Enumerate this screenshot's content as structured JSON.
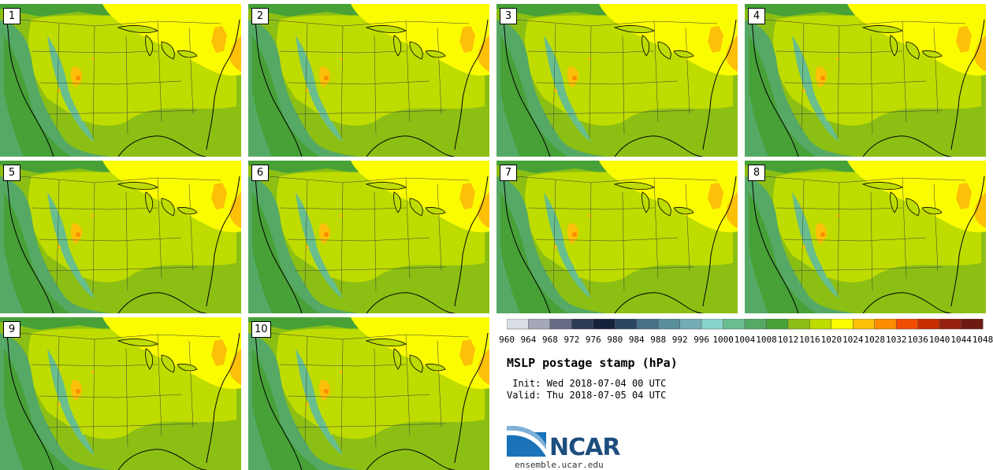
{
  "panels": [
    {
      "label": "1"
    },
    {
      "label": "2"
    },
    {
      "label": "3"
    },
    {
      "label": "4"
    },
    {
      "label": "5"
    },
    {
      "label": "6"
    },
    {
      "label": "7"
    },
    {
      "label": "8"
    },
    {
      "label": "9"
    },
    {
      "label": "10"
    }
  ],
  "colorbar": {
    "levels": [
      "960",
      "964",
      "968",
      "972",
      "976",
      "980",
      "984",
      "988",
      "992",
      "996",
      "1000",
      "1004",
      "1008",
      "1012",
      "1016",
      "1020",
      "1024",
      "1028",
      "1032",
      "1036",
      "1040",
      "1044",
      "1048"
    ],
    "colors": [
      "#d9dde4",
      "#a4a8b8",
      "#676c85",
      "#2f3a55",
      "#16213b",
      "#2b4660",
      "#476f86",
      "#5a8e9b",
      "#73acb2",
      "#86d4cb",
      "#68be8d",
      "#55a965",
      "#47a137",
      "#8cbf14",
      "#bedc00",
      "#fbfc00",
      "#fcc008",
      "#fc8c00",
      "#f04d00",
      "#c82d00",
      "#962110",
      "#6e1a12"
    ]
  },
  "title": "MSLP postage stamp (hPa)",
  "init": " Init: Wed 2018-07-04 00 UTC",
  "valid": "Valid: Thu 2018-07-05 04 UTC",
  "logo_text": "NCAR",
  "website": "ensemble.ucar.edu",
  "icons": {
    "logo": "ncar-logo-icon",
    "map": "conus-map-icon"
  }
}
